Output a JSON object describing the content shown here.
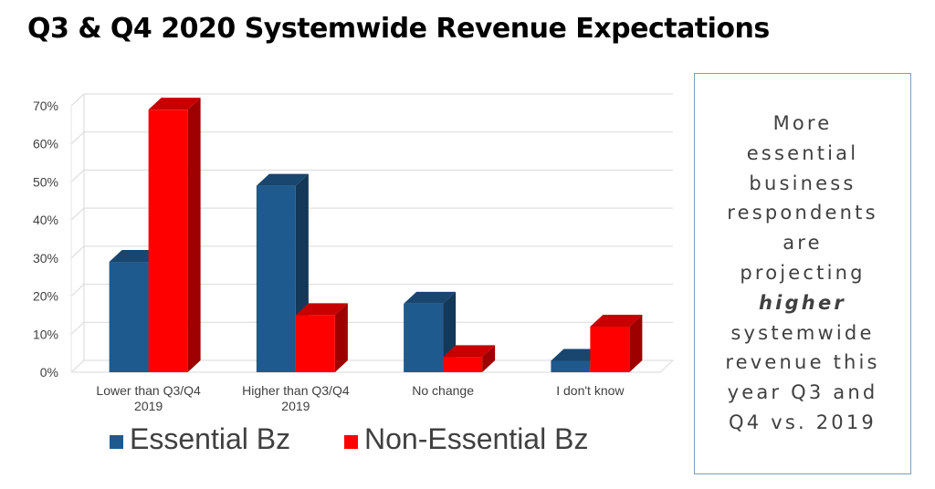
{
  "title": "Q3 & Q4 2020 Systemwide Revenue Expectations",
  "callout": {
    "lines": [
      {
        "text": "More"
      },
      {
        "text": "essential"
      },
      {
        "text": "business"
      },
      {
        "text": "respondents"
      },
      {
        "text": "are"
      },
      {
        "text": "projecting"
      },
      {
        "text": "higher",
        "emphasis": true
      },
      {
        "text": "systemwide"
      },
      {
        "text": "revenue this"
      },
      {
        "text": "year Q3 and"
      },
      {
        "text": "Q4 vs. 2019"
      }
    ]
  },
  "chart_data": {
    "type": "bar",
    "title": "",
    "xlabel": "",
    "ylabel": "",
    "categories": [
      [
        "Lower than Q3/Q4",
        "2019"
      ],
      [
        "Higher than Q3/Q4",
        "2019"
      ],
      [
        "No change"
      ],
      [
        "I don't know"
      ]
    ],
    "series": [
      {
        "name": "Essential Bz",
        "color": "#1f5a8e",
        "values": [
          29,
          49,
          18,
          3
        ]
      },
      {
        "name": "Non-Essential Bz",
        "color": "#ff0000",
        "values": [
          69,
          15,
          4,
          12
        ]
      }
    ],
    "ylim": [
      0,
      70
    ],
    "yticks": [
      0,
      10,
      20,
      30,
      40,
      50,
      60,
      70
    ],
    "ytick_labels": [
      "0%",
      "10%",
      "20%",
      "30%",
      "40%",
      "50%",
      "60%",
      "70%"
    ],
    "grid": true,
    "three_d": true,
    "legend_position": "bottom"
  }
}
